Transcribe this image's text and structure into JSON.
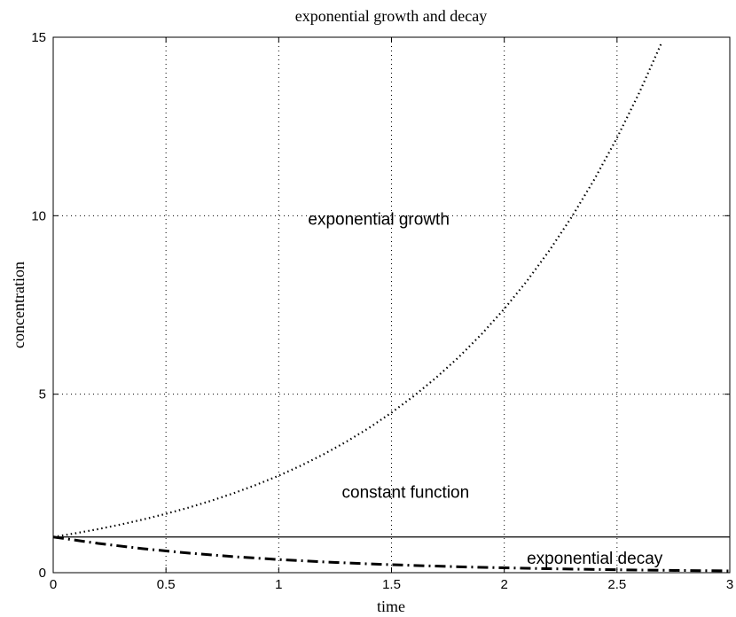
{
  "chart_data": {
    "type": "line",
    "title": "exponential growth and decay",
    "xlabel": "time",
    "ylabel": "concentration",
    "xlim": [
      0,
      3
    ],
    "ylim": [
      0,
      15
    ],
    "xticks": [
      0,
      0.5,
      1,
      1.5,
      2,
      2.5,
      3
    ],
    "xtick_labels": [
      "0",
      "0.5",
      "1",
      "1.5",
      "2",
      "2.5",
      "3"
    ],
    "yticks": [
      0,
      5,
      10,
      15
    ],
    "ytick_labels": [
      "0",
      "5",
      "10",
      "15"
    ],
    "grid": true,
    "legend": "none",
    "series": [
      {
        "key": "growth",
        "style": "dotted",
        "color": "#000000",
        "x": [
          0,
          0.1,
          0.2,
          0.3,
          0.4,
          0.5,
          0.6,
          0.7,
          0.8,
          0.9,
          1.0,
          1.1,
          1.2,
          1.3,
          1.4,
          1.5,
          1.6,
          1.7,
          1.8,
          1.9,
          2.0,
          2.1,
          2.2,
          2.3,
          2.4,
          2.5,
          2.6,
          2.7
        ],
        "y": [
          1,
          1.105,
          1.221,
          1.35,
          1.492,
          1.649,
          1.822,
          2.014,
          2.226,
          2.46,
          2.718,
          3.004,
          3.32,
          3.669,
          4.055,
          4.482,
          4.953,
          5.474,
          6.05,
          6.686,
          7.389,
          8.166,
          9.025,
          9.974,
          11.023,
          12.182,
          13.464,
          14.88
        ]
      },
      {
        "key": "constant",
        "style": "solid",
        "color": "#000000",
        "x": [
          0,
          3
        ],
        "y": [
          1,
          1
        ]
      },
      {
        "key": "decay",
        "style": "dash-dot",
        "color": "#000000",
        "x": [
          0,
          0.2,
          0.4,
          0.6,
          0.8,
          1.0,
          1.2,
          1.4,
          1.6,
          1.8,
          2.0,
          2.2,
          2.4,
          2.6,
          2.8,
          3.0
        ],
        "y": [
          1,
          0.819,
          0.67,
          0.549,
          0.449,
          0.368,
          0.301,
          0.247,
          0.202,
          0.165,
          0.135,
          0.111,
          0.091,
          0.074,
          0.061,
          0.05
        ]
      }
    ],
    "annotations": [
      {
        "key": "growth-label",
        "text": "exponential growth",
        "x": 1.13,
        "y": 9.75
      },
      {
        "key": "constant-label",
        "text": "constant function",
        "x": 1.28,
        "y": 2.1
      },
      {
        "key": "decay-label",
        "text": "exponential decay",
        "x": 2.1,
        "y": 0.25
      }
    ]
  }
}
